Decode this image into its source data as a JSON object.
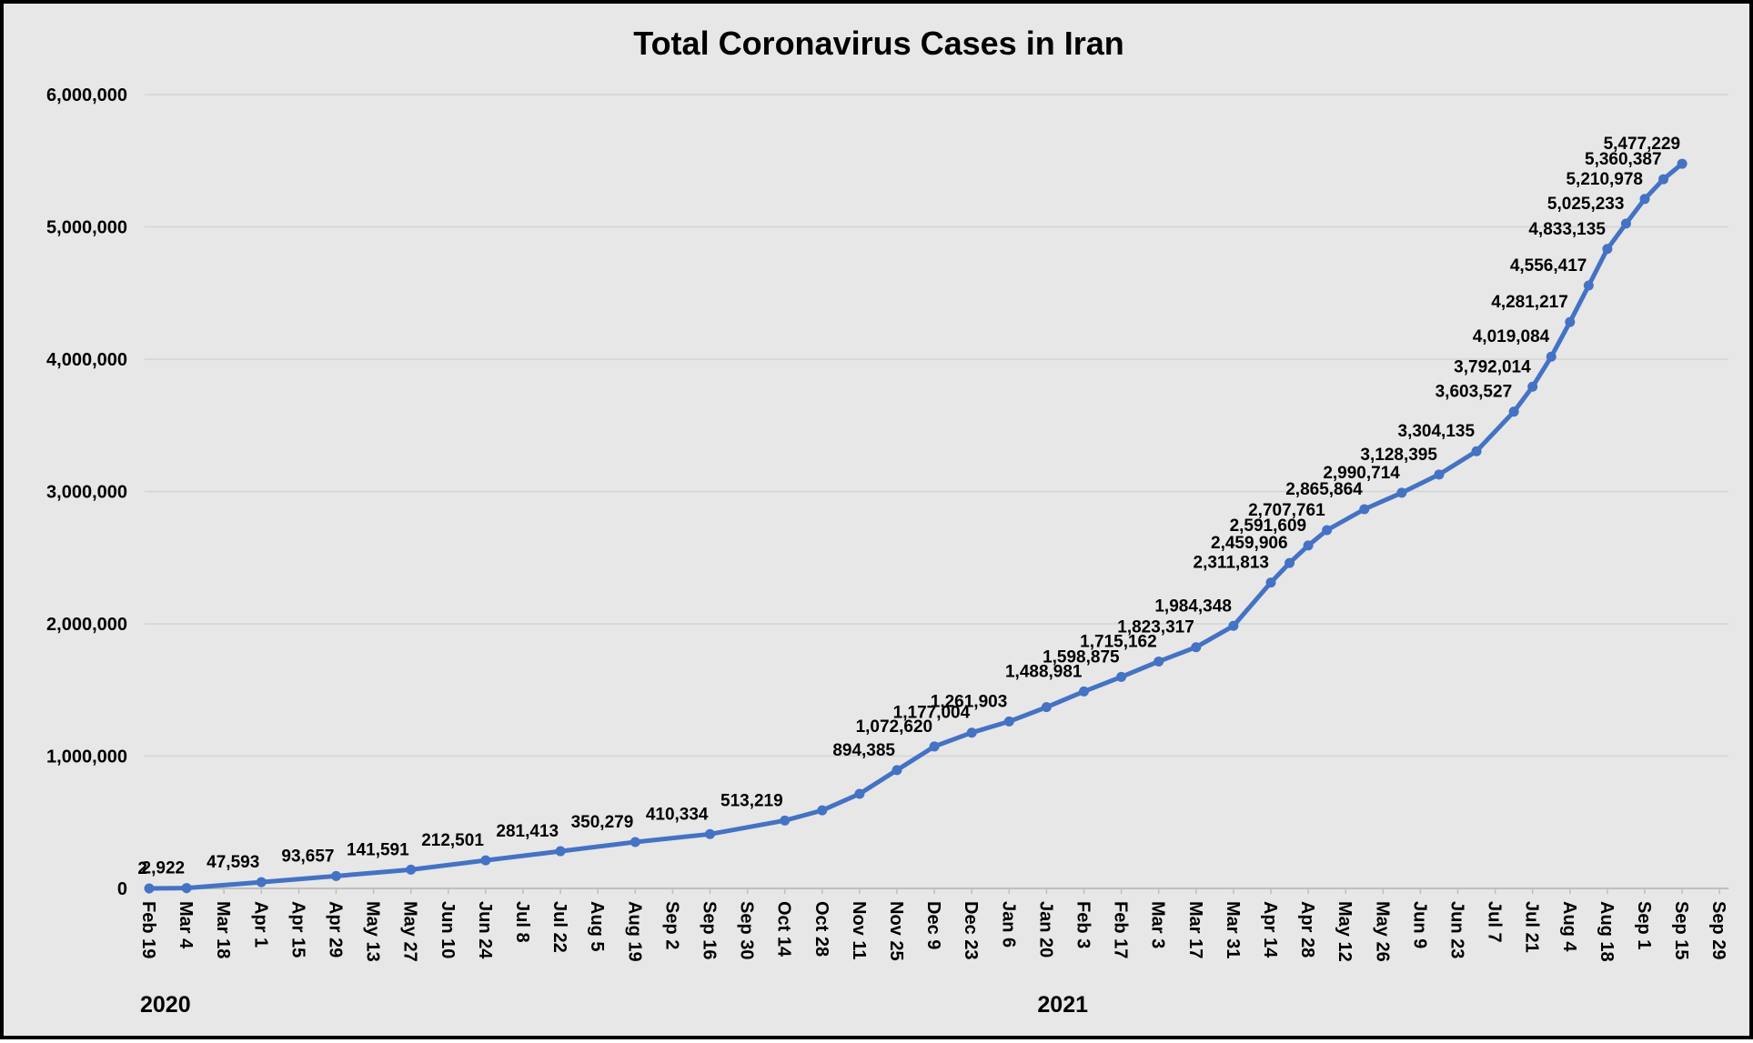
{
  "chart_data": {
    "type": "line",
    "title": "Total Coronavirus Cases in Iran",
    "xlabel": "",
    "ylabel": "",
    "ylim": [
      0,
      6000000
    ],
    "yticks": [
      0,
      1000000,
      2000000,
      3000000,
      4000000,
      5000000,
      6000000
    ],
    "ytick_labels": [
      "0",
      "1,000,000",
      "2,000,000",
      "3,000,000",
      "4,000,000",
      "5,000,000",
      "6,000,000"
    ],
    "grid": true,
    "legend": "none",
    "line_color": "#4472c4",
    "year_labels": [
      {
        "text": "2020",
        "at_tick": 0
      },
      {
        "text": "2021",
        "at_tick": 24
      }
    ],
    "x_tick_labels": [
      "Feb 19",
      "Mar 4",
      "Mar 18",
      "Apr 1",
      "Apr 15",
      "Apr 29",
      "May 13",
      "May 27",
      "Jun 10",
      "Jun 24",
      "Jul 8",
      "Jul 22",
      "Aug 5",
      "Aug 19",
      "Sep 2",
      "Sep 16",
      "Sep 30",
      "Oct 14",
      "Oct 28",
      "Nov 11",
      "Nov 25",
      "Dec 9",
      "Dec 23",
      "Jan 6",
      "Jan 20",
      "Feb 3",
      "Feb 17",
      "Mar 3",
      "Mar 17",
      "Mar 31",
      "Apr 14",
      "Apr 28",
      "May 12",
      "May 26",
      "Jun 9",
      "Jun 23",
      "Jul 7",
      "Jul 21",
      "Aug 4",
      "Aug 18",
      "Sep 1",
      "Sep 15",
      "Sep 29"
    ],
    "series": [
      {
        "points": [
          {
            "x": 0,
            "y": 2,
            "label": "2"
          },
          {
            "x": 1,
            "y": 2922,
            "label": "2,922"
          },
          {
            "x": 3,
            "y": 47593,
            "label": "47,593"
          },
          {
            "x": 5,
            "y": 93657,
            "label": "93,657"
          },
          {
            "x": 7,
            "y": 141591,
            "label": "141,591"
          },
          {
            "x": 9,
            "y": 212501,
            "label": "212,501"
          },
          {
            "x": 11,
            "y": 281413,
            "label": "281,413"
          },
          {
            "x": 13,
            "y": 350279,
            "label": "350,279"
          },
          {
            "x": 15,
            "y": 410334,
            "label": "410,334"
          },
          {
            "x": 17,
            "y": 513219,
            "label": "513,219"
          },
          {
            "x": 18,
            "y": 590000
          },
          {
            "x": 19,
            "y": 715000
          },
          {
            "x": 20,
            "y": 894385,
            "label": "894,385"
          },
          {
            "x": 21,
            "y": 1072620,
            "label": "1,072,620"
          },
          {
            "x": 22,
            "y": 1177004,
            "label": "1,177,004"
          },
          {
            "x": 23,
            "y": 1261903,
            "label": "1,261,903"
          },
          {
            "x": 24,
            "y": 1370000
          },
          {
            "x": 25,
            "y": 1488981,
            "label": "1,488,981"
          },
          {
            "x": 26,
            "y": 1598875,
            "label": "1,598,875"
          },
          {
            "x": 27,
            "y": 1715162,
            "label": "1,715,162"
          },
          {
            "x": 28,
            "y": 1823317,
            "label": "1,823,317"
          },
          {
            "x": 29,
            "y": 1984348,
            "label": "1,984,348"
          },
          {
            "x": 30,
            "y": 2311813,
            "label": "2,311,813"
          },
          {
            "x": 30.5,
            "y": 2459906,
            "label": "2,459,906"
          },
          {
            "x": 31,
            "y": 2591609,
            "label": "2,591,609"
          },
          {
            "x": 31.5,
            "y": 2707761,
            "label": "2,707,761"
          },
          {
            "x": 32.5,
            "y": 2865864,
            "label": "2,865,864"
          },
          {
            "x": 33.5,
            "y": 2990714,
            "label": "2,990,714"
          },
          {
            "x": 34.5,
            "y": 3128395,
            "label": "3,128,395"
          },
          {
            "x": 35.5,
            "y": 3304135,
            "label": "3,304,135"
          },
          {
            "x": 36.5,
            "y": 3603527,
            "label": "3,603,527"
          },
          {
            "x": 37,
            "y": 3792014,
            "label": "3,792,014"
          },
          {
            "x": 37.5,
            "y": 4019084,
            "label": "4,019,084"
          },
          {
            "x": 38,
            "y": 4281217,
            "label": "4,281,217"
          },
          {
            "x": 38.5,
            "y": 4556417,
            "label": "4,556,417"
          },
          {
            "x": 39,
            "y": 4833135,
            "label": "4,833,135"
          },
          {
            "x": 39.5,
            "y": 5025233,
            "label": "5,025,233"
          },
          {
            "x": 40,
            "y": 5210978,
            "label": "5,210,978"
          },
          {
            "x": 40.5,
            "y": 5360387,
            "label": "5,360,387"
          },
          {
            "x": 41,
            "y": 5477229,
            "label": "5,477,229"
          }
        ]
      }
    ]
  }
}
